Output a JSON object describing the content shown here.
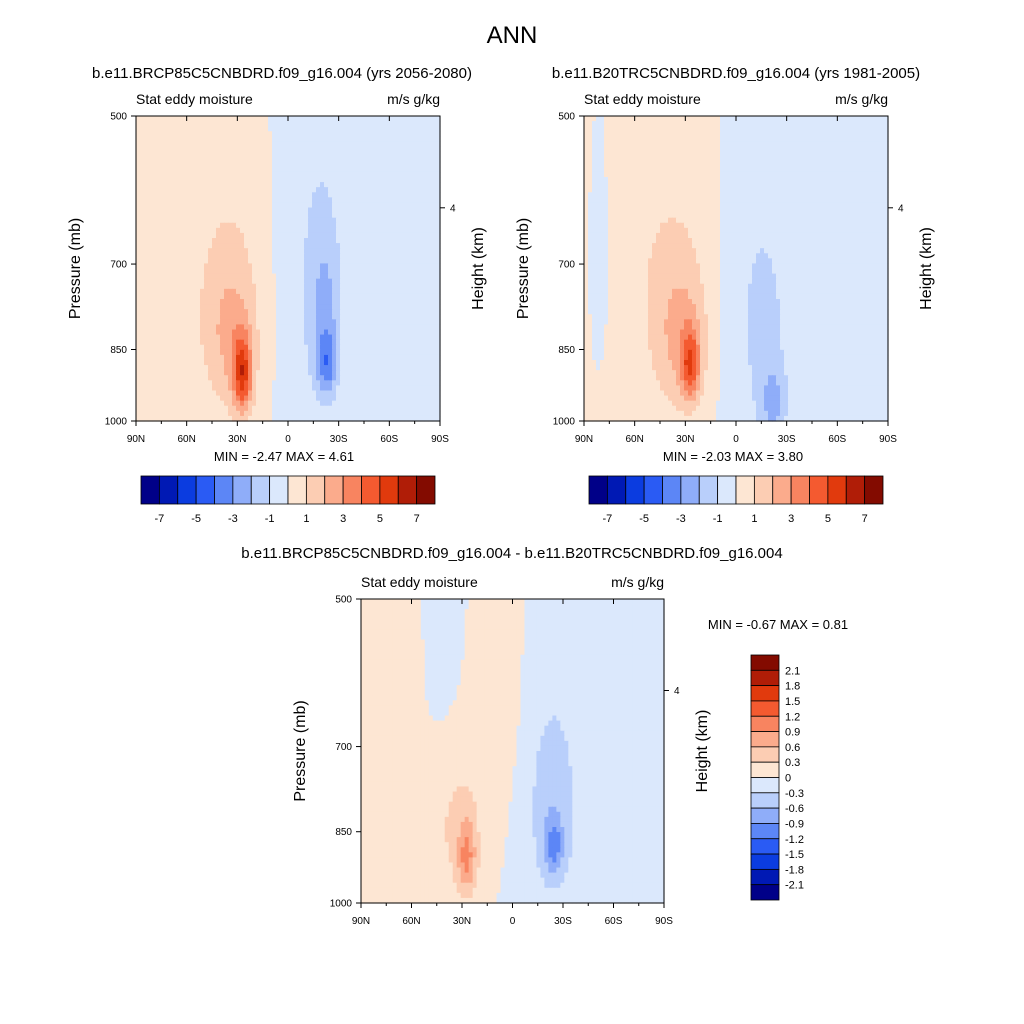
{
  "figure": {
    "title": "ANN"
  },
  "colors": {
    "full": [
      "#000088",
      "#0019b4",
      "#0b3ce0",
      "#2a5bf4",
      "#5c86f6",
      "#8fadf9",
      "#b9cffb",
      "#dbe8fc",
      "#fde6d3",
      "#fccdb3",
      "#fbab8c",
      "#f88460",
      "#f45a30",
      "#e13a0d",
      "#b01d07",
      "#830b00"
    ],
    "diff": [
      "#000088",
      "#0019b4",
      "#0b3ce0",
      "#2a5bf4",
      "#5c86f6",
      "#8fadf9",
      "#b9cffb",
      "#dbe8fc",
      "#fde6d3",
      "#fccdb3",
      "#fbab8c",
      "#f88460",
      "#f45a30",
      "#e13a0d",
      "#b01d07",
      "#830b00"
    ]
  },
  "chart_data": [
    {
      "type": "contour",
      "title": "b.e11.BRCP85C5CNBDRD.f09_g16.004 (yrs 2056-2080)",
      "left_label": "Stat eddy moisture",
      "right_label": "m/s g/kg",
      "ylabel": "Pressure (mb)",
      "ylabel_right": "Height (km)",
      "x_ticks": [
        "90N",
        "60N",
        "30N",
        "0",
        "30S",
        "60S",
        "90S"
      ],
      "y_ticks": [
        "500",
        "700",
        "850",
        "1000"
      ],
      "right_ticks": [
        "4"
      ],
      "xlim": [
        90,
        -90
      ],
      "ylim": [
        1000,
        500
      ],
      "min_max": "MIN =  -2.47  MAX =   4.61",
      "cbar_labels": [
        "-7",
        "-5",
        "-3",
        "-1",
        "1",
        "3",
        "5",
        "7"
      ],
      "cbar_levels": [
        -7,
        -6,
        -5,
        -4,
        -3,
        -2,
        -1,
        0,
        1,
        2,
        3,
        4,
        5,
        6,
        7
      ],
      "features": [
        {
          "lat": 27,
          "p": 900,
          "value": 4.6,
          "wlat": 4,
          "wp": 55
        },
        {
          "lat": 34,
          "p": 820,
          "value": 2.2,
          "wlat": 12,
          "wp": 110
        },
        {
          "lat": 75,
          "p": 730,
          "value": 0.6,
          "wlat": 12,
          "wp": 220
        },
        {
          "lat": 40,
          "p": 600,
          "value": 0.5,
          "wlat": 25,
          "wp": 150
        },
        {
          "lat": -23,
          "p": 880,
          "value": -2.4,
          "wlat": 4,
          "wp": 45
        },
        {
          "lat": -22,
          "p": 780,
          "value": -1.8,
          "wlat": 7,
          "wp": 110
        },
        {
          "lat": -12,
          "p": 650,
          "value": -0.8,
          "wlat": 15,
          "wp": 250
        },
        {
          "lat": -75,
          "p": 700,
          "value": -0.8,
          "wlat": 18,
          "wp": 300
        }
      ]
    },
    {
      "type": "contour",
      "title": "b.e11.B20TRC5CNBDRD.f09_g16.004 (yrs 1981-2005)",
      "left_label": "Stat eddy moisture",
      "right_label": "m/s g/kg",
      "ylabel": "Pressure (mb)",
      "ylabel_right": "Height (km)",
      "x_ticks": [
        "90N",
        "60N",
        "30N",
        "0",
        "30S",
        "60S",
        "90S"
      ],
      "y_ticks": [
        "500",
        "700",
        "850",
        "1000"
      ],
      "right_ticks": [
        "4"
      ],
      "xlim": [
        90,
        -90
      ],
      "ylim": [
        1000,
        500
      ],
      "min_max": "MIN =  -2.03  MAX =   3.80",
      "cbar_labels": [
        "-7",
        "-5",
        "-3",
        "-1",
        "1",
        "3",
        "5",
        "7"
      ],
      "cbar_levels": [
        -7,
        -6,
        -5,
        -4,
        -3,
        -2,
        -1,
        0,
        1,
        2,
        3,
        4,
        5,
        6,
        7
      ],
      "features": [
        {
          "lat": 27,
          "p": 880,
          "value": 3.8,
          "wlat": 4,
          "wp": 50
        },
        {
          "lat": 33,
          "p": 820,
          "value": 2.1,
          "wlat": 12,
          "wp": 110
        },
        {
          "lat": 55,
          "p": 620,
          "value": 0.7,
          "wlat": 25,
          "wp": 200
        },
        {
          "lat": -15,
          "p": 800,
          "value": -1.2,
          "wlat": 15,
          "wp": 200
        },
        {
          "lat": -22,
          "p": 960,
          "value": -1.9,
          "wlat": 5,
          "wp": 50
        },
        {
          "lat": -70,
          "p": 620,
          "value": -0.8,
          "wlat": 20,
          "wp": 300
        },
        {
          "lat": 80,
          "p": 650,
          "value": -0.6,
          "wlat": 6,
          "wp": 150
        }
      ]
    },
    {
      "type": "contour",
      "title": "b.e11.BRCP85C5CNBDRD.f09_g16.004 - b.e11.B20TRC5CNBDRD.f09_g16.004",
      "left_label": "Stat eddy moisture",
      "right_label": "m/s g/kg",
      "ylabel": "Pressure (mb)",
      "ylabel_right": "Height (km)",
      "x_ticks": [
        "90N",
        "60N",
        "30N",
        "0",
        "30S",
        "60S",
        "90S"
      ],
      "y_ticks": [
        "500",
        "700",
        "850",
        "1000"
      ],
      "right_ticks": [
        "4"
      ],
      "xlim": [
        90,
        -90
      ],
      "ylim": [
        1000,
        500
      ],
      "min_max": "MIN =  -0.67  MAX =   0.81",
      "cbar_labels": [
        "2.1",
        "1.8",
        "1.5",
        "1.2",
        "0.9",
        "0.6",
        "0.3",
        "0",
        "-0.3",
        "-0.6",
        "-0.9",
        "-1.2",
        "-1.5",
        "-1.8",
        "-2.1"
      ],
      "cbar_levels": [
        -2.1,
        -1.8,
        -1.5,
        -1.2,
        -0.9,
        -0.6,
        -0.3,
        0,
        0.3,
        0.6,
        0.9,
        1.2,
        1.5,
        1.8,
        2.1
      ],
      "features": [
        {
          "lat": 27,
          "p": 900,
          "value": 0.8,
          "wlat": 4,
          "wp": 55
        },
        {
          "lat": 35,
          "p": 830,
          "value": 0.4,
          "wlat": 12,
          "wp": 120
        },
        {
          "lat": 65,
          "p": 620,
          "value": 0.2,
          "wlat": 12,
          "wp": 200
        },
        {
          "lat": 15,
          "p": 600,
          "value": 0.2,
          "wlat": 15,
          "wp": 150
        },
        {
          "lat": -25,
          "p": 880,
          "value": -0.65,
          "wlat": 4,
          "wp": 40
        },
        {
          "lat": -22,
          "p": 810,
          "value": -0.4,
          "wlat": 9,
          "wp": 120
        },
        {
          "lat": 40,
          "p": 600,
          "value": -0.2,
          "wlat": 15,
          "wp": 200
        },
        {
          "lat": -50,
          "p": 700,
          "value": -0.2,
          "wlat": 30,
          "wp": 300
        }
      ]
    }
  ]
}
